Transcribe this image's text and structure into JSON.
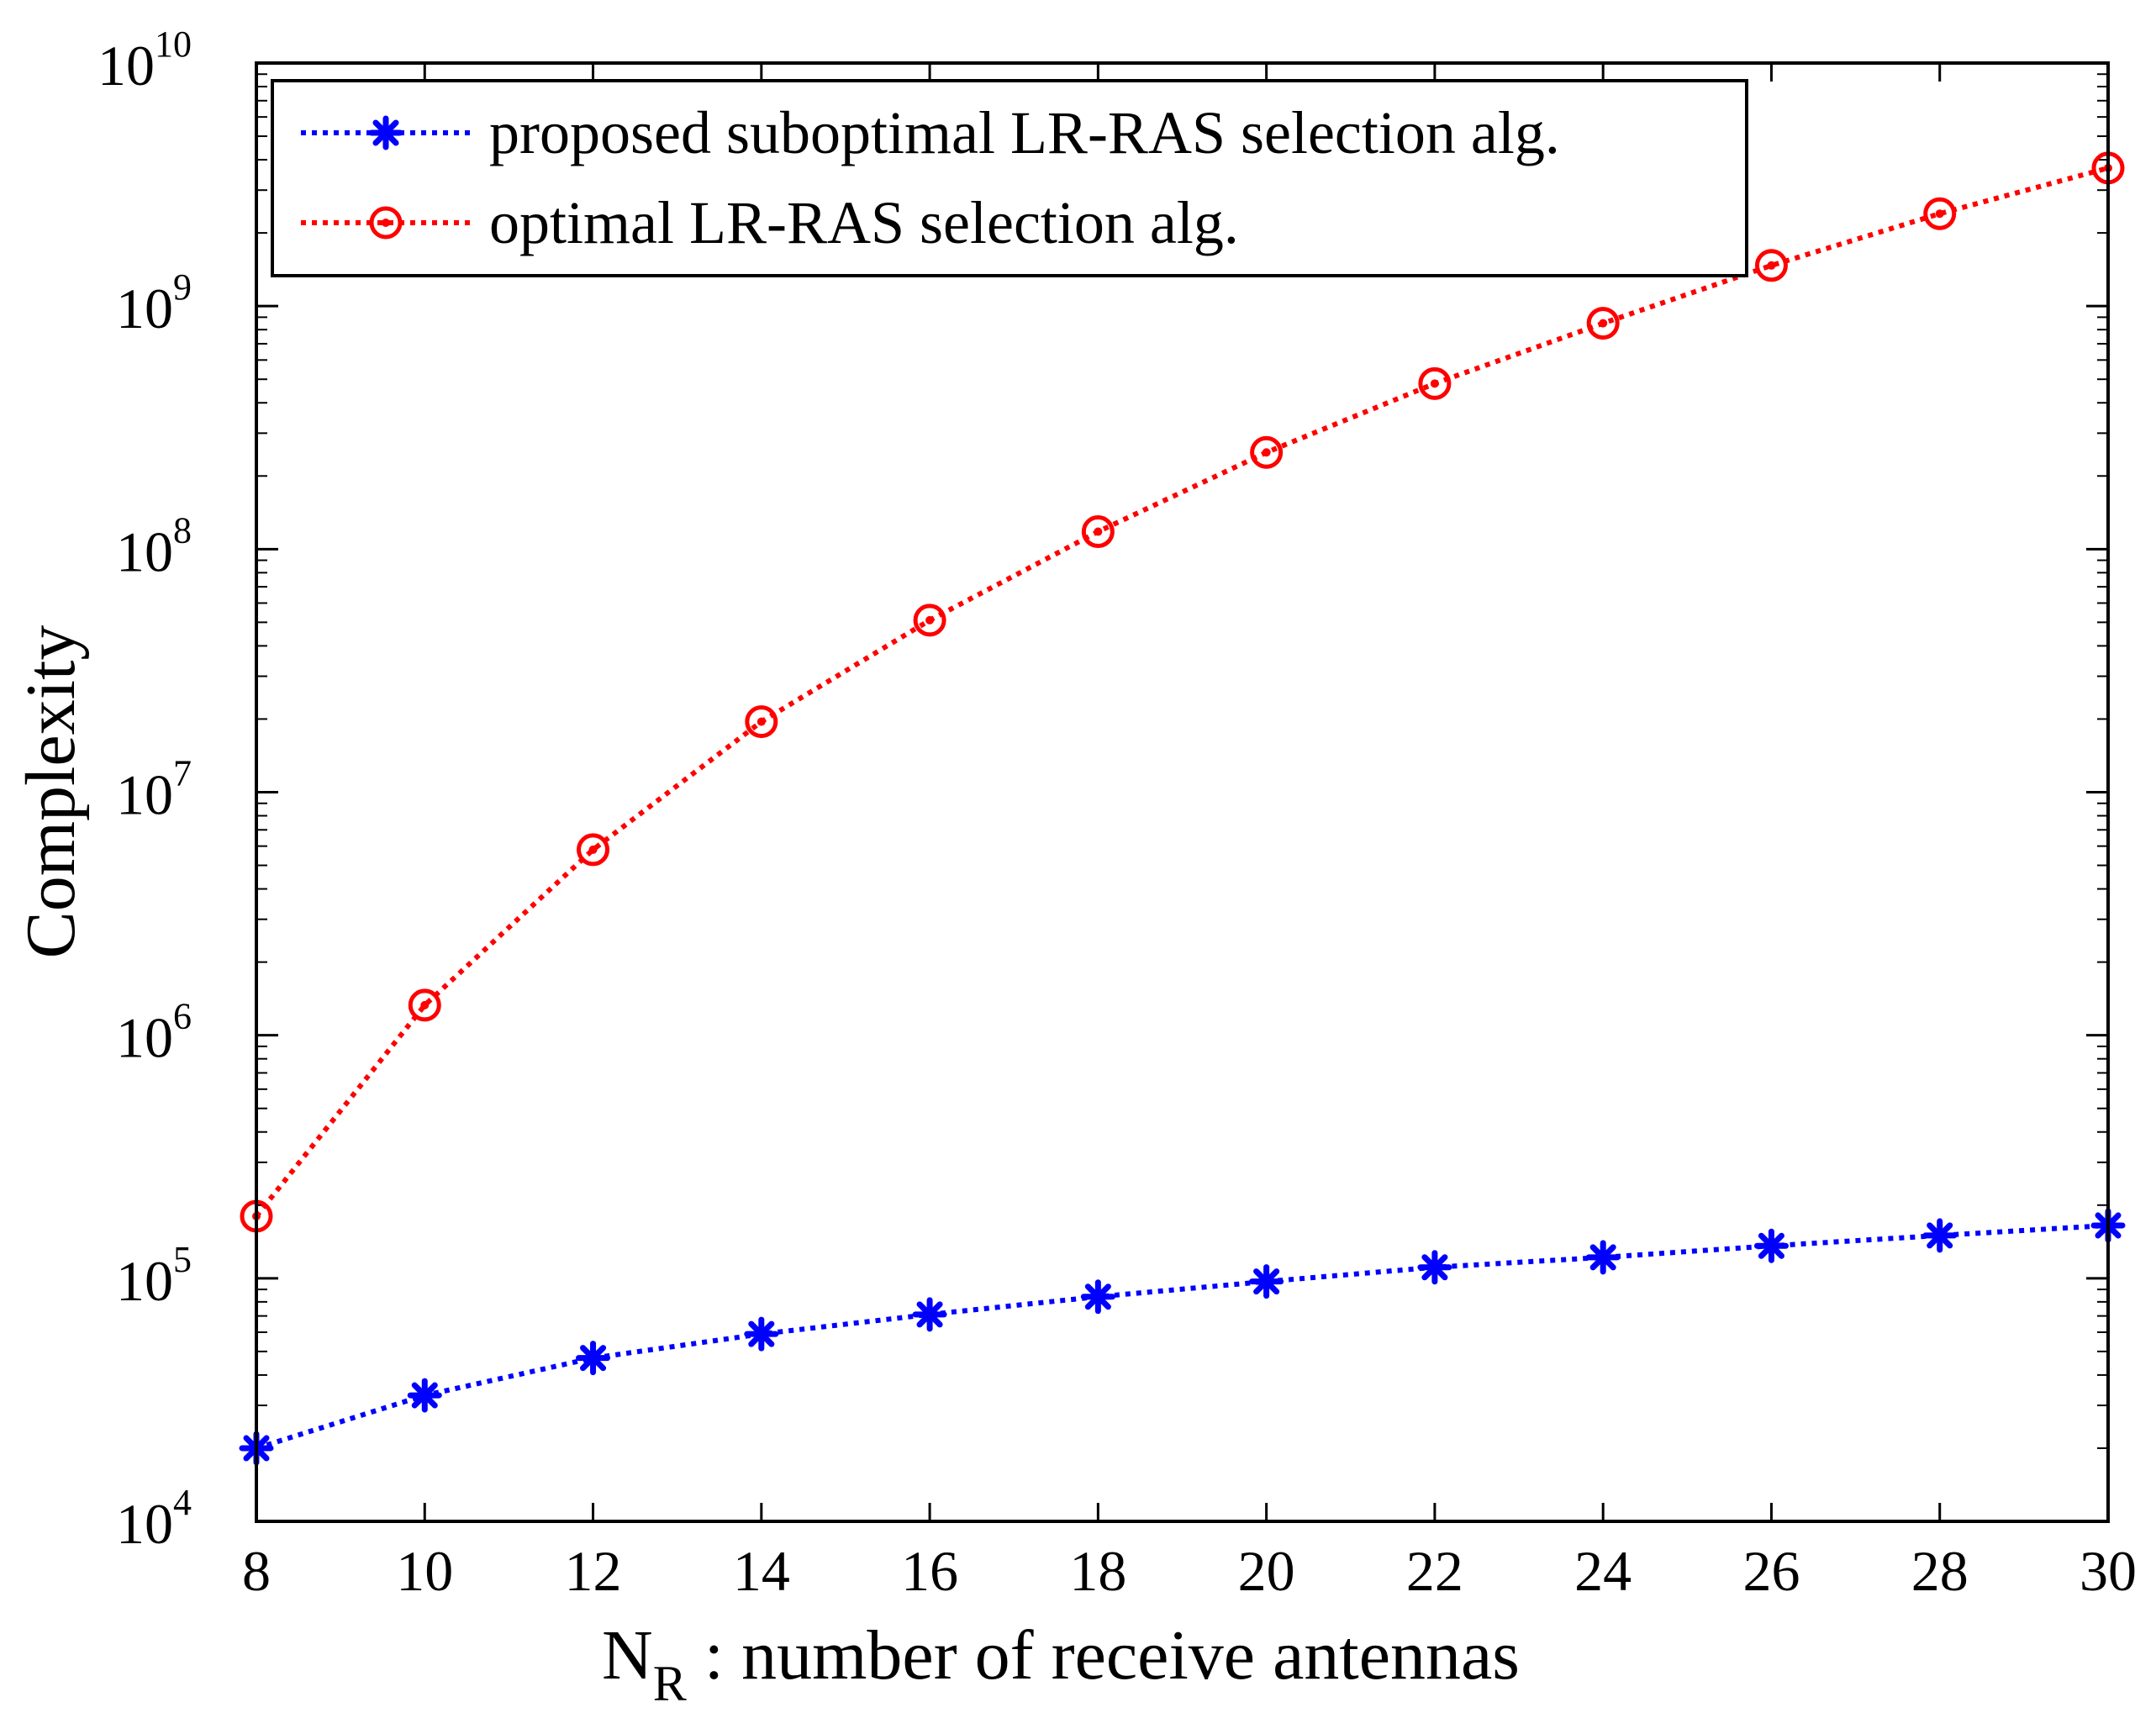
{
  "chart_data": {
    "type": "line",
    "title": "",
    "xlabel": "N",
    "xlabel_sub": "R",
    "xlabel_rest": " : number of receive antennas",
    "ylabel": "Complexity",
    "yscale": "log",
    "xlim": [
      8,
      30
    ],
    "ylim": [
      10000,
      10000000000
    ],
    "x": [
      8,
      10,
      12,
      14,
      16,
      18,
      20,
      22,
      24,
      26,
      28,
      30
    ],
    "x_ticks": [
      "8",
      "10",
      "12",
      "14",
      "16",
      "18",
      "20",
      "22",
      "24",
      "26",
      "28",
      "30"
    ],
    "y_ticks": [
      {
        "value": 10000,
        "base": "10",
        "exp": "4"
      },
      {
        "value": 100000,
        "base": "10",
        "exp": "5"
      },
      {
        "value": 1000000,
        "base": "10",
        "exp": "6"
      },
      {
        "value": 10000000,
        "base": "10",
        "exp": "7"
      },
      {
        "value": 100000000,
        "base": "10",
        "exp": "8"
      },
      {
        "value": 1000000000,
        "base": "10",
        "exp": "9"
      },
      {
        "value": 10000000000,
        "base": "10",
        "exp": "10"
      }
    ],
    "series": [
      {
        "name": "proposed suboptimal LR-RAS selection alg.",
        "color": "#0000ff",
        "marker": "asterisk",
        "line_style": "dotted",
        "values": [
          20000,
          33000,
          47000,
          59000,
          71000,
          84000,
          97000,
          111000,
          122000,
          136000,
          150000,
          165000
        ]
      },
      {
        "name": "optimal LR-RAS selection alg.",
        "color": "#ff0000",
        "marker": "circle",
        "line_style": "dotted",
        "values": [
          180000,
          1330000,
          5800000,
          19500000,
          51000000,
          118000000,
          250000000,
          480000000,
          850000000,
          1470000000,
          2400000000,
          3700000000
        ]
      }
    ],
    "legend_position": "top-left",
    "grid": false
  }
}
